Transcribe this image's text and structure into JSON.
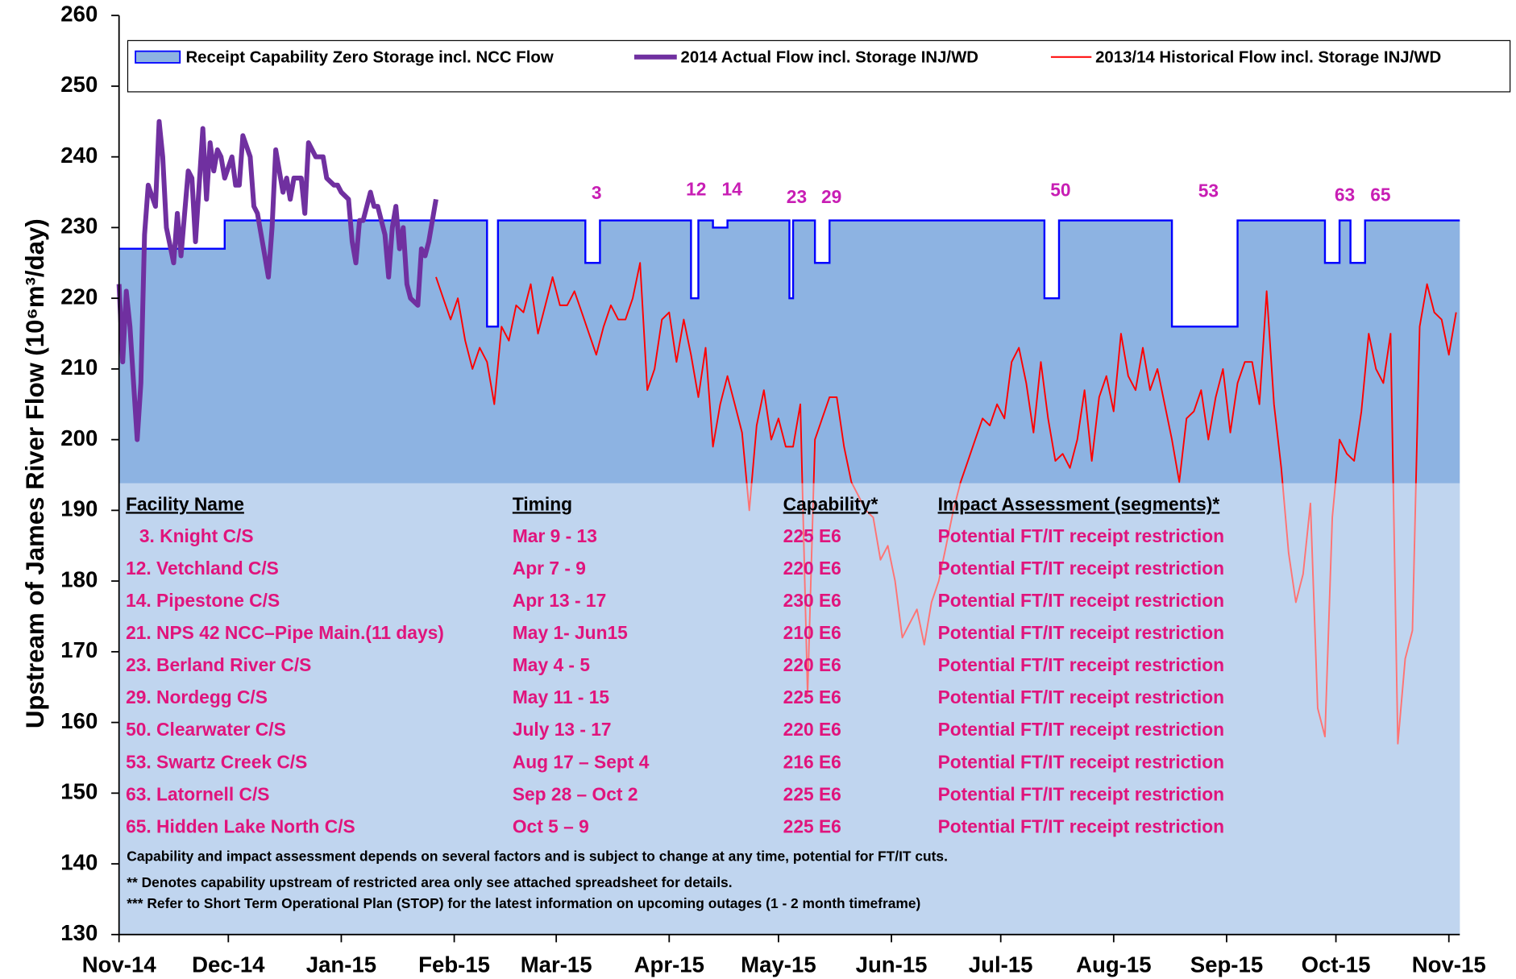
{
  "chart_data": {
    "type": "line",
    "y_label": "Upstream of James River Flow (10⁶m³/day)",
    "xlim": [
      0,
      368
    ],
    "xticks": [
      {
        "value": 0,
        "label": "Nov-14"
      },
      {
        "value": 30,
        "label": "Dec-14"
      },
      {
        "value": 61,
        "label": "Jan-15"
      },
      {
        "value": 92,
        "label": "Feb-15"
      },
      {
        "value": 120,
        "label": "Mar-15"
      },
      {
        "value": 151,
        "label": "Apr-15"
      },
      {
        "value": 181,
        "label": "May-15"
      },
      {
        "value": 212,
        "label": "Jun-15"
      },
      {
        "value": 242,
        "label": "Jul-15"
      },
      {
        "value": 273,
        "label": "Aug-15"
      },
      {
        "value": 304,
        "label": "Sep-15"
      },
      {
        "value": 334,
        "label": "Oct-15"
      },
      {
        "value": 365,
        "label": "Nov-15"
      }
    ],
    "ylim": [
      130,
      260
    ],
    "yticks": [
      130,
      140,
      150,
      160,
      170,
      180,
      190,
      200,
      210,
      220,
      230,
      240,
      250,
      260
    ],
    "legend": "top",
    "series": [
      {
        "name": "Receipt Capability Zero Storage incl. NCC Flow",
        "kind": "area",
        "color": "#8db3e2",
        "edge": "#0000ff",
        "x": [
          0,
          29,
          29,
          101,
          101,
          104,
          104,
          128,
          128,
          132,
          132,
          157,
          157,
          159,
          159,
          163,
          163,
          167,
          167,
          184,
          184,
          185,
          185,
          191,
          191,
          195,
          195,
          254,
          254,
          258,
          258,
          289,
          289,
          307,
          307,
          331,
          331,
          335,
          335,
          338,
          338,
          342,
          342,
          368
        ],
        "values": [
          227,
          227,
          231,
          231,
          216,
          216,
          231,
          231,
          225,
          225,
          231,
          231,
          220,
          220,
          231,
          231,
          230,
          230,
          231,
          231,
          220,
          220,
          231,
          231,
          225,
          225,
          231,
          231,
          220,
          220,
          231,
          231,
          216,
          216,
          231,
          231,
          225,
          225,
          231,
          231,
          225,
          225,
          231,
          231
        ]
      },
      {
        "name": "2014 Actual Flow incl. Storage INJ/WD",
        "kind": "line",
        "color": "#7030a0",
        "width": 5,
        "x": [
          0,
          1,
          2,
          3,
          5,
          6,
          7,
          8,
          10,
          11,
          12,
          13,
          15,
          16,
          17,
          19,
          20,
          21,
          23,
          24,
          25,
          26,
          27,
          28,
          29,
          31,
          32,
          33,
          34,
          36,
          37,
          38,
          40,
          41,
          42,
          43,
          45,
          46,
          47,
          48,
          50,
          51,
          52,
          54,
          55,
          56,
          57,
          59,
          60,
          61,
          63,
          64,
          65,
          66,
          67,
          69,
          70,
          71,
          73,
          74,
          75,
          76,
          77,
          78,
          79,
          80,
          82,
          83,
          84,
          85,
          87
        ],
        "values": [
          222,
          211,
          221,
          216,
          200,
          208,
          229,
          236,
          233,
          245,
          240,
          230,
          225,
          232,
          226,
          238,
          237,
          228,
          244,
          234,
          242,
          238,
          241,
          240,
          237,
          240,
          236,
          236,
          243,
          240,
          233,
          232,
          226,
          223,
          230,
          241,
          235,
          237,
          234,
          237,
          237,
          232,
          242,
          240,
          240,
          240,
          237,
          236,
          236,
          235,
          234,
          228,
          225,
          231,
          231,
          235,
          233,
          233,
          229,
          223,
          230,
          233,
          227,
          230,
          222,
          220,
          219,
          227,
          226,
          228,
          234
        ]
      },
      {
        "name": "2013/14 Historical Flow incl. Storage INJ/WD",
        "kind": "line",
        "color": "#ff0000",
        "width": 1.6,
        "x": [
          87,
          89,
          91,
          93,
          95,
          97,
          99,
          101,
          103,
          105,
          107,
          109,
          111,
          113,
          115,
          117,
          119,
          121,
          123,
          125,
          127,
          129,
          131,
          133,
          135,
          137,
          139,
          141,
          143,
          145,
          147,
          149,
          151,
          153,
          155,
          157,
          159,
          161,
          163,
          165,
          167,
          169,
          171,
          173,
          175,
          177,
          179,
          181,
          183,
          185,
          187,
          189,
          191,
          193,
          195,
          197,
          199,
          201,
          203,
          205,
          207,
          209,
          211,
          213,
          215,
          217,
          219,
          221,
          223,
          225,
          227,
          229,
          231,
          233,
          235,
          237,
          239,
          241,
          243,
          245,
          247,
          249,
          251,
          253,
          255,
          257,
          259,
          261,
          263,
          265,
          267,
          269,
          271,
          273,
          275,
          277,
          279,
          281,
          283,
          285,
          287,
          289,
          291,
          293,
          295,
          297,
          299,
          301,
          303,
          305,
          307,
          309,
          311,
          313,
          315,
          317,
          319,
          321,
          323,
          325,
          327,
          329,
          331,
          333,
          335,
          337,
          339,
          341,
          343,
          345,
          347,
          349,
          351,
          353,
          355,
          357,
          359,
          361,
          363,
          365,
          367
        ],
        "values": [
          223,
          220,
          217,
          220,
          214,
          210,
          213,
          211,
          205,
          216,
          214,
          219,
          218,
          222,
          215,
          219,
          223,
          219,
          219,
          221,
          218,
          215,
          212,
          216,
          219,
          217,
          217,
          220,
          225,
          207,
          210,
          217,
          218,
          211,
          217,
          212,
          206,
          213,
          199,
          205,
          209,
          205,
          201,
          190,
          202,
          207,
          200,
          203,
          199,
          199,
          205,
          164,
          200,
          203,
          206,
          206,
          199,
          194,
          192,
          190,
          189,
          183,
          185,
          180,
          172,
          174,
          176,
          171,
          177,
          180,
          185,
          190,
          194,
          197,
          200,
          203,
          202,
          205,
          203,
          211,
          213,
          208,
          201,
          211,
          203,
          197,
          198,
          196,
          200,
          207,
          197,
          206,
          209,
          204,
          215,
          209,
          207,
          213,
          207,
          210,
          205,
          200,
          194,
          203,
          204,
          207,
          200,
          206,
          210,
          201,
          208,
          211,
          211,
          205,
          221,
          205,
          196,
          184,
          177,
          181,
          191,
          162,
          158,
          189,
          200,
          198,
          197,
          204,
          215,
          210,
          208,
          215,
          157,
          169,
          173,
          216,
          222,
          218,
          217,
          212,
          218
        ]
      }
    ],
    "annotations": [
      "3",
      "12",
      "14",
      "23",
      "29",
      "50",
      "53",
      "63",
      "65"
    ],
    "table": {
      "header": [
        "Facility Name",
        "Timing",
        "Capability*",
        "Impact Assessment (segments)*"
      ],
      "rows": [
        [
          "3. Knight C/S",
          "Mar 9 - 13",
          "225 E6",
          "Potential FT/IT receipt restriction"
        ],
        [
          "12. Vetchland C/S",
          "Apr 7 - 9",
          "220 E6",
          "Potential FT/IT receipt restriction"
        ],
        [
          "14. Pipestone C/S",
          "Apr 13 - 17",
          "230 E6",
          "Potential FT/IT receipt restriction"
        ],
        [
          "21. NPS 42 NCC–Pipe Main.(11 days)",
          "May 1- Jun15",
          "210 E6",
          "Potential FT/IT receipt restriction"
        ],
        [
          "23. Berland River C/S",
          "May 4 - 5",
          "220 E6",
          "Potential FT/IT receipt restriction"
        ],
        [
          "29. Nordegg C/S",
          "May 11 - 15",
          "225 E6",
          "Potential FT/IT receipt restriction"
        ],
        [
          "50. Clearwater C/S",
          "July 13 - 17",
          "220 E6",
          "Potential FT/IT receipt restriction"
        ],
        [
          "53. Swartz Creek C/S",
          "Aug 17 – Sept 4",
          "216 E6",
          "Potential FT/IT receipt restriction"
        ],
        [
          "63. Latornell C/S",
          "Sep 28 – Oct 2",
          "225 E6",
          "Potential FT/IT receipt restriction"
        ],
        [
          "65. Hidden Lake North C/S",
          "Oct 5 – 9",
          "225 E6",
          "Potential FT/IT receipt restriction"
        ]
      ],
      "notes": [
        "Capability and impact assessment depends on several factors and is subject to change at any time, potential for FT/IT cuts.",
        "** Denotes capability upstream of restricted area only see attached spreadsheet for details.",
        "*** Refer to Short Term Operational Plan (STOP) for the latest information on upcoming outages (1 - 2 month timeframe)"
      ]
    }
  }
}
